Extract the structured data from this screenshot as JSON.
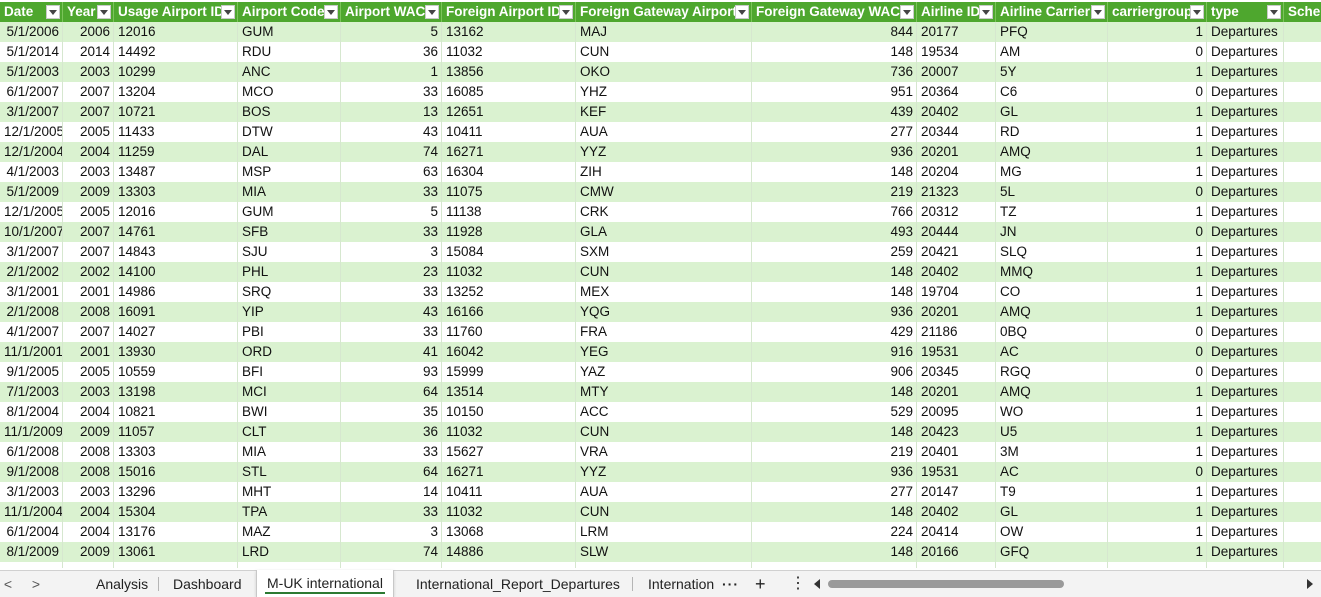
{
  "sheet": {
    "headers": [
      "Date",
      "Year",
      "Usage Airport ID",
      "Airport Code",
      "Airport WAC",
      "Foreign Airport ID",
      "Foreign Gateway Airport",
      "Foreign Gateway WAC",
      "Airline ID",
      "Airline Carrier",
      "carriergroup",
      "type",
      "Sche"
    ],
    "rows": [
      [
        "5/1/2006",
        "2006",
        "12016",
        "GUM",
        "5",
        "13162",
        "MAJ",
        "844",
        "20177",
        "PFQ",
        "1",
        "Departures"
      ],
      [
        "5/1/2014",
        "2014",
        "14492",
        "RDU",
        "36",
        "11032",
        "CUN",
        "148",
        "19534",
        "AM",
        "0",
        "Departures"
      ],
      [
        "5/1/2003",
        "2003",
        "10299",
        "ANC",
        "1",
        "13856",
        "OKO",
        "736",
        "20007",
        "5Y",
        "1",
        "Departures"
      ],
      [
        "6/1/2007",
        "2007",
        "13204",
        "MCO",
        "33",
        "16085",
        "YHZ",
        "951",
        "20364",
        "C6",
        "0",
        "Departures"
      ],
      [
        "3/1/2007",
        "2007",
        "10721",
        "BOS",
        "13",
        "12651",
        "KEF",
        "439",
        "20402",
        "GL",
        "1",
        "Departures"
      ],
      [
        "12/1/2005",
        "2005",
        "11433",
        "DTW",
        "43",
        "10411",
        "AUA",
        "277",
        "20344",
        "RD",
        "1",
        "Departures"
      ],
      [
        "12/1/2004",
        "2004",
        "11259",
        "DAL",
        "74",
        "16271",
        "YYZ",
        "936",
        "20201",
        "AMQ",
        "1",
        "Departures"
      ],
      [
        "4/1/2003",
        "2003",
        "13487",
        "MSP",
        "63",
        "16304",
        "ZIH",
        "148",
        "20204",
        "MG",
        "1",
        "Departures"
      ],
      [
        "5/1/2009",
        "2009",
        "13303",
        "MIA",
        "33",
        "11075",
        "CMW",
        "219",
        "21323",
        "5L",
        "0",
        "Departures"
      ],
      [
        "12/1/2005",
        "2005",
        "12016",
        "GUM",
        "5",
        "11138",
        "CRK",
        "766",
        "20312",
        "TZ",
        "1",
        "Departures"
      ],
      [
        "10/1/2007",
        "2007",
        "14761",
        "SFB",
        "33",
        "11928",
        "GLA",
        "493",
        "20444",
        "JN",
        "0",
        "Departures"
      ],
      [
        "3/1/2007",
        "2007",
        "14843",
        "SJU",
        "3",
        "15084",
        "SXM",
        "259",
        "20421",
        "SLQ",
        "1",
        "Departures"
      ],
      [
        "2/1/2002",
        "2002",
        "14100",
        "PHL",
        "23",
        "11032",
        "CUN",
        "148",
        "20402",
        "MMQ",
        "1",
        "Departures"
      ],
      [
        "3/1/2001",
        "2001",
        "14986",
        "SRQ",
        "33",
        "13252",
        "MEX",
        "148",
        "19704",
        "CO",
        "1",
        "Departures"
      ],
      [
        "2/1/2008",
        "2008",
        "16091",
        "YIP",
        "43",
        "16166",
        "YQG",
        "936",
        "20201",
        "AMQ",
        "1",
        "Departures"
      ],
      [
        "4/1/2007",
        "2007",
        "14027",
        "PBI",
        "33",
        "11760",
        "FRA",
        "429",
        "21186",
        "0BQ",
        "0",
        "Departures"
      ],
      [
        "11/1/2001",
        "2001",
        "13930",
        "ORD",
        "41",
        "16042",
        "YEG",
        "916",
        "19531",
        "AC",
        "0",
        "Departures"
      ],
      [
        "9/1/2005",
        "2005",
        "10559",
        "BFI",
        "93",
        "15999",
        "YAZ",
        "906",
        "20345",
        "RGQ",
        "0",
        "Departures"
      ],
      [
        "7/1/2003",
        "2003",
        "13198",
        "MCI",
        "64",
        "13514",
        "MTY",
        "148",
        "20201",
        "AMQ",
        "1",
        "Departures"
      ],
      [
        "8/1/2004",
        "2004",
        "10821",
        "BWI",
        "35",
        "10150",
        "ACC",
        "529",
        "20095",
        "WO",
        "1",
        "Departures"
      ],
      [
        "11/1/2009",
        "2009",
        "11057",
        "CLT",
        "36",
        "11032",
        "CUN",
        "148",
        "20423",
        "U5",
        "1",
        "Departures"
      ],
      [
        "6/1/2008",
        "2008",
        "13303",
        "MIA",
        "33",
        "15627",
        "VRA",
        "219",
        "20401",
        "3M",
        "1",
        "Departures"
      ],
      [
        "9/1/2008",
        "2008",
        "15016",
        "STL",
        "64",
        "16271",
        "YYZ",
        "936",
        "19531",
        "AC",
        "0",
        "Departures"
      ],
      [
        "3/1/2003",
        "2003",
        "13296",
        "MHT",
        "14",
        "10411",
        "AUA",
        "277",
        "20147",
        "T9",
        "1",
        "Departures"
      ],
      [
        "11/1/2004",
        "2004",
        "15304",
        "TPA",
        "33",
        "11032",
        "CUN",
        "148",
        "20402",
        "GL",
        "1",
        "Departures"
      ],
      [
        "6/1/2004",
        "2004",
        "13176",
        "MAZ",
        "3",
        "13068",
        "LRM",
        "224",
        "20414",
        "OW",
        "1",
        "Departures"
      ],
      [
        "8/1/2009",
        "2009",
        "13061",
        "LRD",
        "74",
        "14886",
        "SLW",
        "148",
        "20166",
        "GFQ",
        "1",
        "Departures"
      ]
    ],
    "colors": {
      "header": "#4ea72e",
      "band": "#daf2d0",
      "active_tab_underline": "#2c7a32"
    }
  },
  "bottombar": {
    "nav_prev": "<",
    "nav_next": ">",
    "tabs": [
      "Analysis",
      "Dashboard",
      "M-UK international",
      "International_Report_Departures",
      "Internation"
    ],
    "active_tab": "M-UK international",
    "more": "···",
    "add": "+",
    "options": "⋮"
  }
}
